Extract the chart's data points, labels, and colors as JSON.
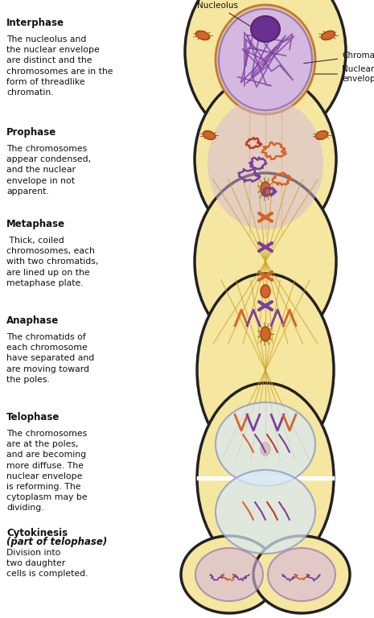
{
  "bg_color": "#ffffff",
  "stages": [
    {
      "name": "Interphase",
      "bold": true,
      "description": "The nucleolus and\nthe nuclear envelope\nare distinct and the\nchromosomes are in the\nform of threadlike\nchromatin.",
      "annotations": [
        "Nucleolus",
        "Chromatin",
        "Nuclear\nenvelope"
      ]
    },
    {
      "name": "Prophase",
      "bold": true,
      "description": "The chromosomes\nappear condensed,\nand the nuclear\nenvelope in not\napparent."
    },
    {
      "name": "Metaphase",
      "bold": true,
      "description": " Thick, coiled\nchromosomes, each\nwith two chromatids,\nare lined up on the\nmetaphase plate."
    },
    {
      "name": "Anaphase",
      "bold": true,
      "description": "The chromatids of\neach chromosome\nhave separated and\nare moving toward\nthe poles."
    },
    {
      "name": "Telophase",
      "bold": true,
      "description": "The chromosomes\nare at the poles,\nand are becoming\nmore diffuse. The\nnuclear envelope\nis reforming. The\ncytoplasm may be\ndividing."
    },
    {
      "name": "Cytokinesis\n(part of telophase)",
      "bold": true,
      "description": "Division into\ntwo daughter\ncells is completed."
    }
  ],
  "cell_color": "#f5e6a0",
  "cell_outline": "#222222",
  "nucleus_color": "#d4b8e0",
  "nucleolus_color": "#7b4fa0",
  "chromatin_color_purple": "#7b3f9e",
  "chromatin_color_orange": "#d4642a",
  "chromatin_color_red": "#c0392b",
  "spindle_color": "#b8860b",
  "text_color": "#111111"
}
